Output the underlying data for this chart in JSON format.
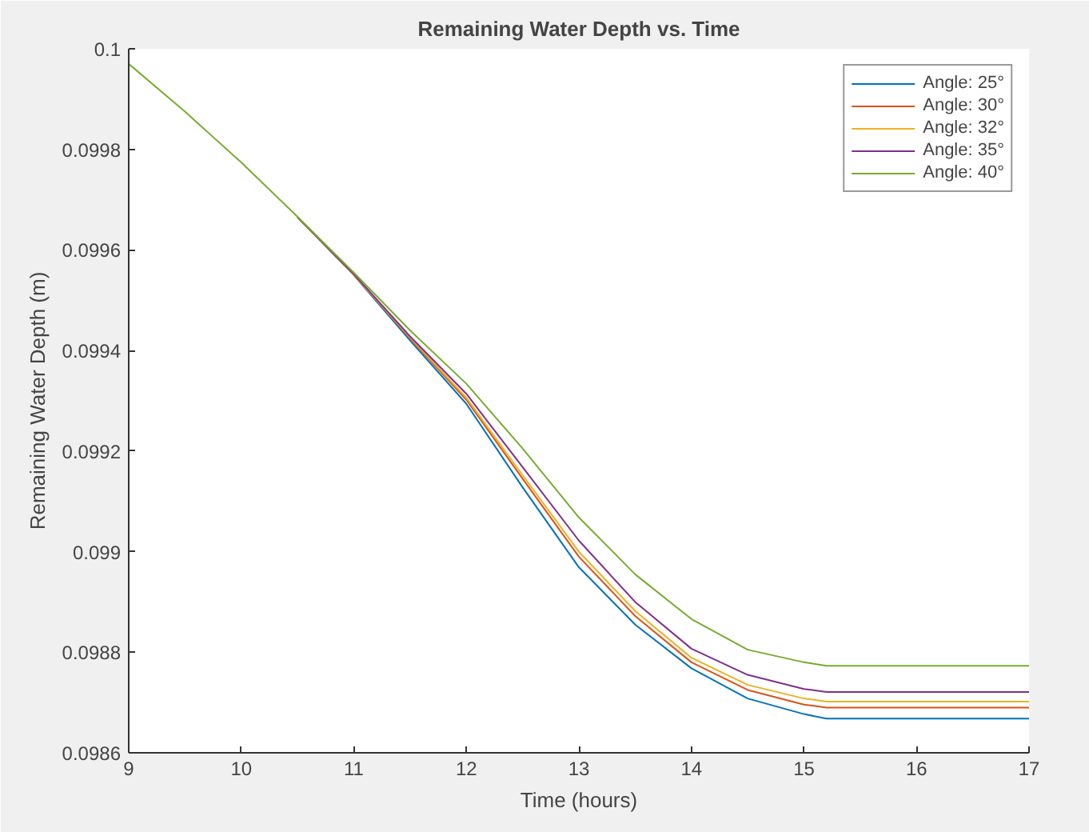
{
  "chart_data": {
    "type": "line",
    "title": "Remaining Water Depth vs. Time",
    "xlabel": "Time (hours)",
    "ylabel": "Remaining Water Depth (m)",
    "x": [
      9,
      9.5,
      10,
      10.5,
      11,
      11.5,
      12,
      12.5,
      13,
      13.5,
      14,
      14.5,
      15,
      15.2,
      17
    ],
    "xlim": [
      9,
      17
    ],
    "xticks": [
      9,
      10,
      11,
      12,
      13,
      14,
      15,
      16,
      17
    ],
    "ylim": [
      0.0986,
      0.1
    ],
    "yticks": [
      {
        "value": 0.0986,
        "label": "0.0986"
      },
      {
        "value": 0.0988,
        "label": "0.0988"
      },
      {
        "value": 0.099,
        "label": "0.099"
      },
      {
        "value": 0.0992,
        "label": "0.0992"
      },
      {
        "value": 0.0994,
        "label": "0.0994"
      },
      {
        "value": 0.0996,
        "label": "0.0996"
      },
      {
        "value": 0.0998,
        "label": "0.0998"
      },
      {
        "value": 0.1,
        "label": "0.1"
      }
    ],
    "legend": "top right",
    "grid": false,
    "line_style": "solid",
    "marker": "none",
    "series": [
      {
        "name": "Angle: 25°",
        "color": "#0072bd",
        "values": [
          null,
          null,
          null,
          0.099665,
          0.09955,
          0.09942,
          0.099294,
          0.099128,
          0.098969,
          0.098855,
          0.098768,
          0.098708,
          0.098677,
          0.098668,
          0.098668
        ]
      },
      {
        "name": "Angle: 30°",
        "color": "#d95319",
        "values": [
          null,
          null,
          null,
          0.099665,
          0.099551,
          0.099424,
          0.099302,
          0.099145,
          0.09899,
          0.098872,
          0.09878,
          0.098725,
          0.098696,
          0.09869,
          0.09869
        ]
      },
      {
        "name": "Angle: 32°",
        "color": "#edb120",
        "values": [
          null,
          null,
          null,
          0.099665,
          0.099551,
          0.099426,
          0.099306,
          0.099152,
          0.099,
          0.098882,
          0.098789,
          0.098735,
          0.098708,
          0.098702,
          0.098702
        ]
      },
      {
        "name": "Angle: 35°",
        "color": "#7e2f8e",
        "values": [
          null,
          null,
          null,
          0.099665,
          0.099552,
          0.099428,
          0.099314,
          0.099168,
          0.099022,
          0.0989,
          0.098807,
          0.098755,
          0.098727,
          0.098721,
          0.098721
        ]
      },
      {
        "name": "Angle: 40°",
        "color": "#77ac30",
        "values": [
          0.09997,
          0.099875,
          0.099774,
          0.099666,
          0.099555,
          0.09944,
          0.099334,
          0.099205,
          0.099068,
          0.098955,
          0.098866,
          0.098805,
          0.09878,
          0.098773,
          0.098773
        ]
      }
    ]
  }
}
